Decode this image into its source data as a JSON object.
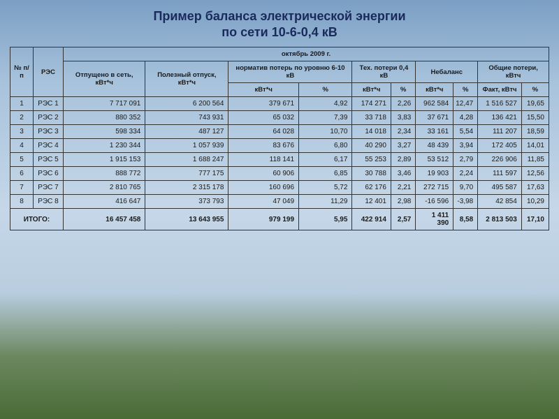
{
  "title_line1": "Пример баланса электрической энергии",
  "title_line2": "по сети 10-6-0,4 кВ",
  "period_header": "октябрь 2009 г.",
  "headers": {
    "num": "№ п/п",
    "res": "РЭС",
    "otpuscheno": "Отпущено в сеть, кВт*ч",
    "polezny": "Полезный отпуск, кВт*ч",
    "normativ": "норматив потерь по уровню 6-10 кВ",
    "tehpoteri": "Тех. потери 0,4 кВ",
    "nebalans": "Небаланс",
    "obshie": "Общие потери, кВтч",
    "kvtch": "кВт*ч",
    "pct": "%",
    "fakt": "Факт, кВтч"
  },
  "rows": [
    {
      "n": "1",
      "res": "РЭС 1",
      "otp": "7 717 091",
      "pol": "6 200 564",
      "norm_k": "379 671",
      "norm_p": "4,92",
      "teh_k": "174 271",
      "teh_p": "2,26",
      "neb_k": "962 584",
      "neb_p": "12,47",
      "ob_k": "1 516 527",
      "ob_p": "19,65"
    },
    {
      "n": "2",
      "res": "РЭС 2",
      "otp": "880 352",
      "pol": "743 931",
      "norm_k": "65 032",
      "norm_p": "7,39",
      "teh_k": "33 718",
      "teh_p": "3,83",
      "neb_k": "37 671",
      "neb_p": "4,28",
      "ob_k": "136 421",
      "ob_p": "15,50"
    },
    {
      "n": "3",
      "res": "РЭС 3",
      "otp": "598 334",
      "pol": "487 127",
      "norm_k": "64 028",
      "norm_p": "10,70",
      "teh_k": "14 018",
      "teh_p": "2,34",
      "neb_k": "33 161",
      "neb_p": "5,54",
      "ob_k": "111 207",
      "ob_p": "18,59"
    },
    {
      "n": "4",
      "res": "РЭС 4",
      "otp": "1 230 344",
      "pol": "1 057 939",
      "norm_k": "83 676",
      "norm_p": "6,80",
      "teh_k": "40 290",
      "teh_p": "3,27",
      "neb_k": "48 439",
      "neb_p": "3,94",
      "ob_k": "172 405",
      "ob_p": "14,01"
    },
    {
      "n": "5",
      "res": "РЭС 5",
      "otp": "1 915 153",
      "pol": "1 688 247",
      "norm_k": "118 141",
      "norm_p": "6,17",
      "teh_k": "55 253",
      "teh_p": "2,89",
      "neb_k": "53 512",
      "neb_p": "2,79",
      "ob_k": "226 906",
      "ob_p": "11,85"
    },
    {
      "n": "6",
      "res": "РЭС 6",
      "otp": "888 772",
      "pol": "777 175",
      "norm_k": "60 906",
      "norm_p": "6,85",
      "teh_k": "30 788",
      "teh_p": "3,46",
      "neb_k": "19 903",
      "neb_p": "2,24",
      "ob_k": "111 597",
      "ob_p": "12,56"
    },
    {
      "n": "7",
      "res": "РЭС 7",
      "otp": "2 810 765",
      "pol": "2 315 178",
      "norm_k": "160 696",
      "norm_p": "5,72",
      "teh_k": "62 176",
      "teh_p": "2,21",
      "neb_k": "272 715",
      "neb_p": "9,70",
      "ob_k": "495 587",
      "ob_p": "17,63"
    },
    {
      "n": "8",
      "res": "РЭС 8",
      "otp": "416 647",
      "pol": "373 793",
      "norm_k": "47 049",
      "norm_p": "11,29",
      "teh_k": "12 401",
      "teh_p": "2,98",
      "neb_k": "-16 596",
      "neb_p": "-3,98",
      "ob_k": "42 854",
      "ob_p": "10,29"
    }
  ],
  "total": {
    "label": "ИТОГО:",
    "otp": "16 457 458",
    "pol": "13 643 955",
    "norm_k": "979 199",
    "norm_p": "5,95",
    "teh_k": "422 914",
    "teh_p": "2,57",
    "neb_k": "1 411 390",
    "neb_p": "8,58",
    "ob_k": "2 813 503",
    "ob_p": "17,10"
  },
  "style": {
    "title_color": "#1a2a5c",
    "title_fontsize": 18,
    "border_color": "#333333",
    "cell_fontsize": 10,
    "header_fontsize": 9.5
  }
}
